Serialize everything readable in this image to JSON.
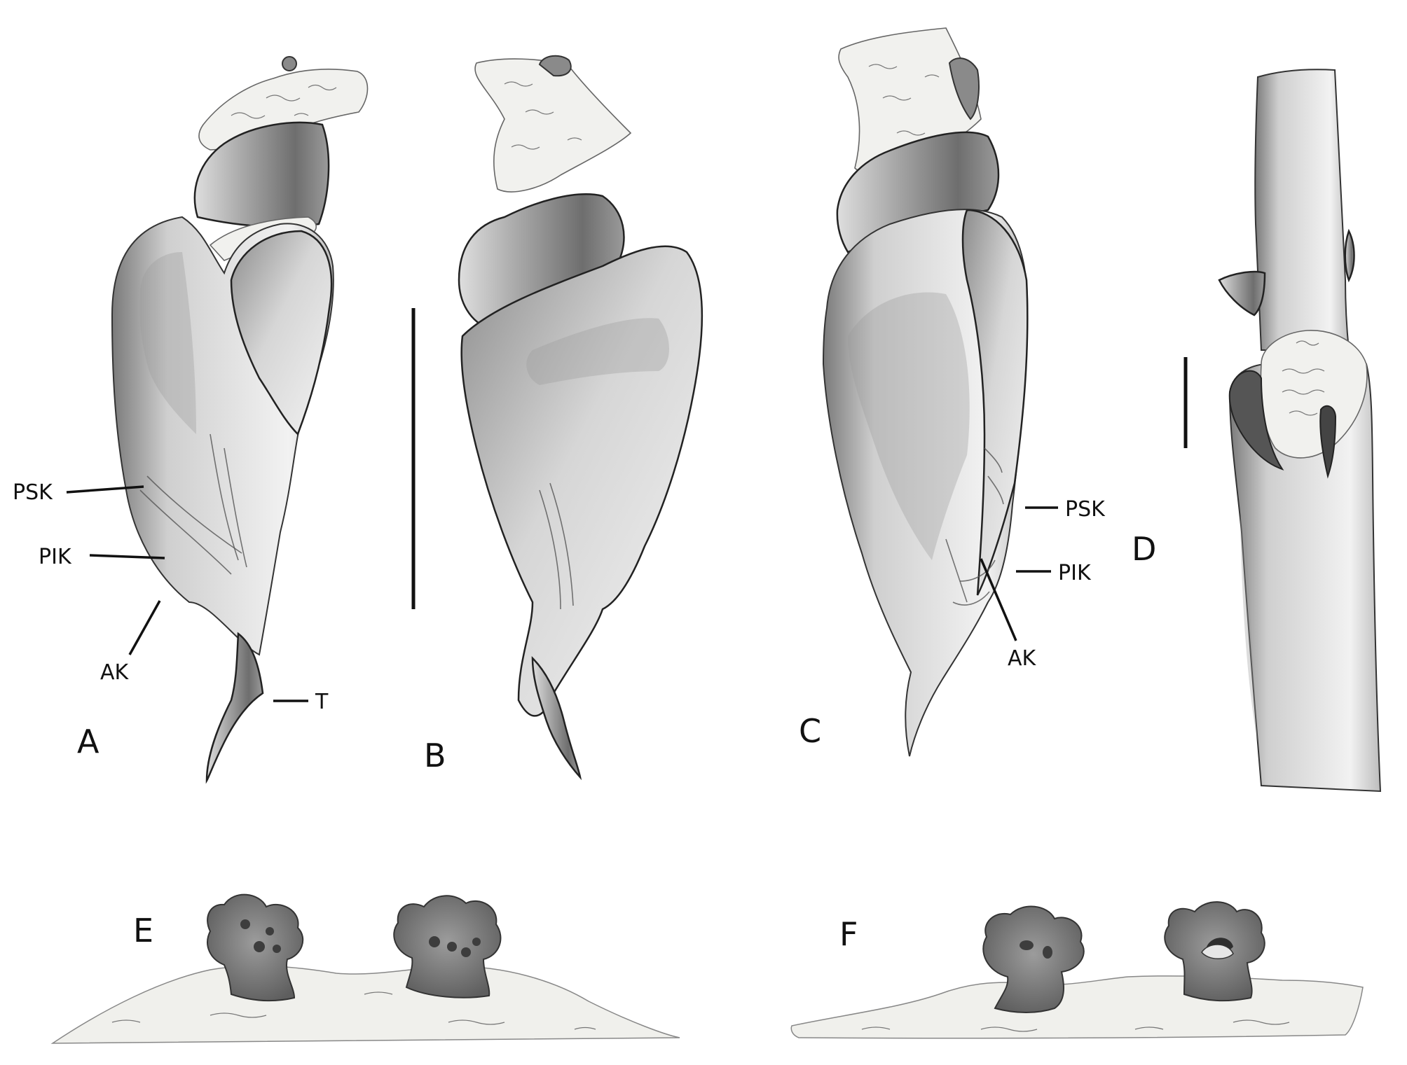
{
  "panels": {
    "a": "A",
    "b": "B",
    "c": "C",
    "d": "D",
    "e": "E",
    "f": "F"
  },
  "callouts": {
    "a_psk": "PSK",
    "a_pik": "PIK",
    "a_ak": "AK",
    "a_t": "T",
    "c_psk": "PSK",
    "c_pik": "PIK",
    "c_ak": "AK"
  },
  "colors": {
    "ink": "#111111",
    "shading_dark": "#5a5a5a",
    "shading_light": "#e6e6e6",
    "membrane": "#f1f1ee"
  }
}
